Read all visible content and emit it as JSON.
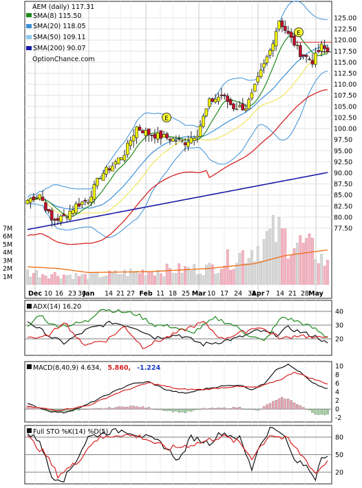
{
  "chart_data": [
    {
      "type": "candlestick",
      "symbol_line": "AEM (daily) 117.31",
      "legend": [
        {
          "label": "SMA(8) 115.50",
          "color": "#1e8a1e"
        },
        {
          "label": "SMA(20) 118.05",
          "color": "#3a8fd8"
        },
        {
          "label": "SMA(50) 109.11",
          "color": "#8fc8ee"
        },
        {
          "label": "SMA(200) 90.07",
          "color": "#1a1aa8"
        }
      ],
      "watermark": "OptionChance.com",
      "price_ticks": [
        "125.00",
        "122.50",
        "120.00",
        "117.50",
        "115.00",
        "112.50",
        "110.00",
        "107.50",
        "105.00",
        "102.50",
        "100.00",
        "97.50",
        "95.00",
        "92.50",
        "90.00",
        "87.50",
        "85.00",
        "82.50",
        "80.00",
        "77.50"
      ],
      "volume_ticks": [
        "7M",
        "6M",
        "5M",
        "4M",
        "3M",
        "2M",
        "1M"
      ],
      "x_labels": [
        "Dec",
        "10",
        "16",
        "23",
        "30",
        "Jan",
        "14",
        "21",
        "27",
        "Feb",
        "11",
        "18",
        "25",
        "Mar",
        "10",
        "17",
        "24",
        "31",
        "Apr",
        "7",
        "14",
        "21",
        "28",
        "May"
      ],
      "earnings_marker": "E",
      "last_price": 117.31,
      "close_anchors": [
        [
          0,
          83.8
        ],
        [
          4,
          85.2
        ],
        [
          8,
          79.2
        ],
        [
          12,
          80.0
        ],
        [
          16,
          82.7
        ],
        [
          20,
          83.9
        ],
        [
          24,
          89.4
        ],
        [
          28,
          91.7
        ],
        [
          32,
          94.5
        ],
        [
          36,
          100.3
        ],
        [
          40,
          98.8
        ],
        [
          44,
          98.2
        ],
        [
          48,
          97.6
        ],
        [
          52,
          96.9
        ],
        [
          56,
          99.0
        ],
        [
          60,
          106.0
        ],
        [
          64,
          107.5
        ],
        [
          68,
          104.8
        ],
        [
          72,
          104.8
        ],
        [
          74,
          107.5
        ],
        [
          76,
          111.0
        ],
        [
          80,
          117.6
        ],
        [
          83,
          124.5
        ],
        [
          86,
          121.2
        ],
        [
          88,
          119.2
        ],
        [
          90,
          117.0
        ],
        [
          94,
          115.2
        ],
        [
          97,
          118.5
        ],
        [
          99,
          117.31
        ]
      ],
      "sma200": [
        [
          0,
          77.2
        ],
        [
          99,
          90.07
        ]
      ],
      "volume_m_anchors": [
        [
          0,
          1.5
        ],
        [
          20,
          1.0
        ],
        [
          40,
          1.7
        ],
        [
          60,
          2.0
        ],
        [
          75,
          4.5
        ],
        [
          82,
          6.4
        ],
        [
          88,
          5.3
        ],
        [
          95,
          4.1
        ],
        [
          99,
          2.4
        ]
      ],
      "volume_avg_m_anchors": [
        [
          0,
          2.2
        ],
        [
          10,
          2.0
        ],
        [
          20,
          1.5
        ],
        [
          40,
          1.6
        ],
        [
          60,
          2.0
        ],
        [
          75,
          2.6
        ],
        [
          85,
          3.6
        ],
        [
          99,
          4.3
        ]
      ]
    },
    {
      "type": "line",
      "label": "ADX(14) 16.20",
      "ticks": [
        "40",
        "30",
        "20"
      ],
      "ylim": [
        8,
        48
      ],
      "series": [
        {
          "name": "ADX",
          "color": "#111111",
          "anchors": [
            [
              0,
              33
            ],
            [
              8,
              21
            ],
            [
              12,
              17
            ],
            [
              20,
              27
            ],
            [
              28,
              32
            ],
            [
              36,
              28
            ],
            [
              42,
              21
            ],
            [
              50,
              23
            ],
            [
              58,
              16
            ],
            [
              64,
              18
            ],
            [
              70,
              21
            ],
            [
              76,
              26
            ],
            [
              82,
              23
            ],
            [
              86,
              28
            ],
            [
              90,
              25
            ],
            [
              96,
              21
            ],
            [
              99,
              16
            ]
          ]
        },
        {
          "name": "+DI",
          "color": "#1e8a1e",
          "anchors": [
            [
              0,
              28
            ],
            [
              4,
              38
            ],
            [
              8,
              30
            ],
            [
              14,
              30
            ],
            [
              20,
              33
            ],
            [
              24,
              42
            ],
            [
              30,
              40
            ],
            [
              36,
              38
            ],
            [
              42,
              30
            ],
            [
              48,
              29
            ],
            [
              54,
              24
            ],
            [
              62,
              35
            ],
            [
              68,
              30
            ],
            [
              72,
              24
            ],
            [
              78,
              18
            ],
            [
              84,
              36
            ],
            [
              90,
              32
            ],
            [
              95,
              27
            ],
            [
              99,
              21
            ]
          ]
        },
        {
          "name": "-DI",
          "color": "#d62020",
          "anchors": [
            [
              0,
              22
            ],
            [
              4,
              20
            ],
            [
              8,
              24
            ],
            [
              12,
              33
            ],
            [
              18,
              16
            ],
            [
              26,
              19
            ],
            [
              32,
              29
            ],
            [
              38,
              14
            ],
            [
              46,
              21
            ],
            [
              52,
              27
            ],
            [
              58,
              32
            ],
            [
              64,
              20
            ],
            [
              70,
              24
            ],
            [
              76,
              29
            ],
            [
              84,
              20
            ],
            [
              90,
              23
            ],
            [
              95,
              20
            ],
            [
              99,
              23
            ]
          ]
        }
      ],
      "guide_lines": [
        40,
        30,
        20
      ]
    },
    {
      "type": "line",
      "label": "MACD(8,40,9) 4.634,",
      "value_red": "5.860,",
      "value_blue": "-1.224",
      "ticks": [
        "10",
        "8",
        "6",
        "4",
        "2",
        "0",
        "-2"
      ],
      "ylim": [
        -3,
        11
      ],
      "series": [
        {
          "name": "MACD",
          "color": "#111111",
          "anchors": [
            [
              0,
              1.2
            ],
            [
              8,
              -0.6
            ],
            [
              12,
              -0.8
            ],
            [
              18,
              0.5
            ],
            [
              26,
              3.2
            ],
            [
              34,
              5.8
            ],
            [
              40,
              6.3
            ],
            [
              46,
              4.4
            ],
            [
              52,
              3.6
            ],
            [
              58,
              4.6
            ],
            [
              64,
              5.3
            ],
            [
              70,
              5.6
            ],
            [
              74,
              4.5
            ],
            [
              78,
              5.8
            ],
            [
              82,
              9.2
            ],
            [
              86,
              10.3
            ],
            [
              90,
              8.5
            ],
            [
              94,
              6.0
            ],
            [
              99,
              4.634
            ]
          ]
        },
        {
          "name": "Signal",
          "color": "#d62020",
          "anchors": [
            [
              0,
              0.6
            ],
            [
              10,
              -0.3
            ],
            [
              20,
              0.8
            ],
            [
              30,
              3.8
            ],
            [
              40,
              6.1
            ],
            [
              50,
              4.6
            ],
            [
              58,
              4.5
            ],
            [
              68,
              5.2
            ],
            [
              76,
              5.0
            ],
            [
              84,
              7.0
            ],
            [
              88,
              8.6
            ],
            [
              94,
              7.0
            ],
            [
              99,
              5.86
            ]
          ]
        }
      ],
      "histogram": [
        [
          0,
          0.6
        ],
        [
          8,
          -0.6
        ],
        [
          12,
          -0.6
        ],
        [
          18,
          -0.2
        ],
        [
          26,
          0.2
        ],
        [
          34,
          0.7
        ],
        [
          40,
          0.3
        ],
        [
          46,
          -0.4
        ],
        [
          52,
          -0.8
        ],
        [
          58,
          0.1
        ],
        [
          64,
          0.2
        ],
        [
          70,
          0.4
        ],
        [
          76,
          -0.4
        ],
        [
          80,
          1.4
        ],
        [
          84,
          2.6
        ],
        [
          86,
          2.3
        ],
        [
          90,
          0.8
        ],
        [
          95,
          -1.2
        ],
        [
          99,
          -1.224
        ]
      ]
    },
    {
      "type": "line",
      "label": "Full STO %K(14) %D(5)",
      "ticks": [
        "80",
        "50",
        "20"
      ],
      "ylim": [
        0,
        100
      ],
      "series": [
        {
          "name": "%K",
          "color": "#111111",
          "anchors": [
            [
              0,
              85
            ],
            [
              4,
              75
            ],
            [
              8,
              12
            ],
            [
              12,
              8
            ],
            [
              16,
              40
            ],
            [
              20,
              80
            ],
            [
              26,
              88
            ],
            [
              32,
              92
            ],
            [
              38,
              82
            ],
            [
              44,
              70
            ],
            [
              50,
              40
            ],
            [
              54,
              80
            ],
            [
              60,
              70
            ],
            [
              64,
              88
            ],
            [
              70,
              78
            ],
            [
              74,
              25
            ],
            [
              76,
              60
            ],
            [
              80,
              95
            ],
            [
              84,
              90
            ],
            [
              88,
              40
            ],
            [
              92,
              30
            ],
            [
              95,
              10
            ],
            [
              97,
              50
            ],
            [
              99,
              48
            ]
          ]
        },
        {
          "name": "%D",
          "color": "#d62020",
          "anchors": [
            [
              0,
              80
            ],
            [
              6,
              50
            ],
            [
              10,
              15
            ],
            [
              16,
              35
            ],
            [
              22,
              75
            ],
            [
              30,
              85
            ],
            [
              38,
              80
            ],
            [
              46,
              60
            ],
            [
              52,
              65
            ],
            [
              58,
              72
            ],
            [
              64,
              82
            ],
            [
              70,
              70
            ],
            [
              74,
              45
            ],
            [
              80,
              85
            ],
            [
              86,
              75
            ],
            [
              92,
              40
            ],
            [
              95,
              18
            ],
            [
              99,
              40
            ]
          ]
        }
      ],
      "guide_lines": [
        80,
        50,
        20
      ]
    }
  ]
}
